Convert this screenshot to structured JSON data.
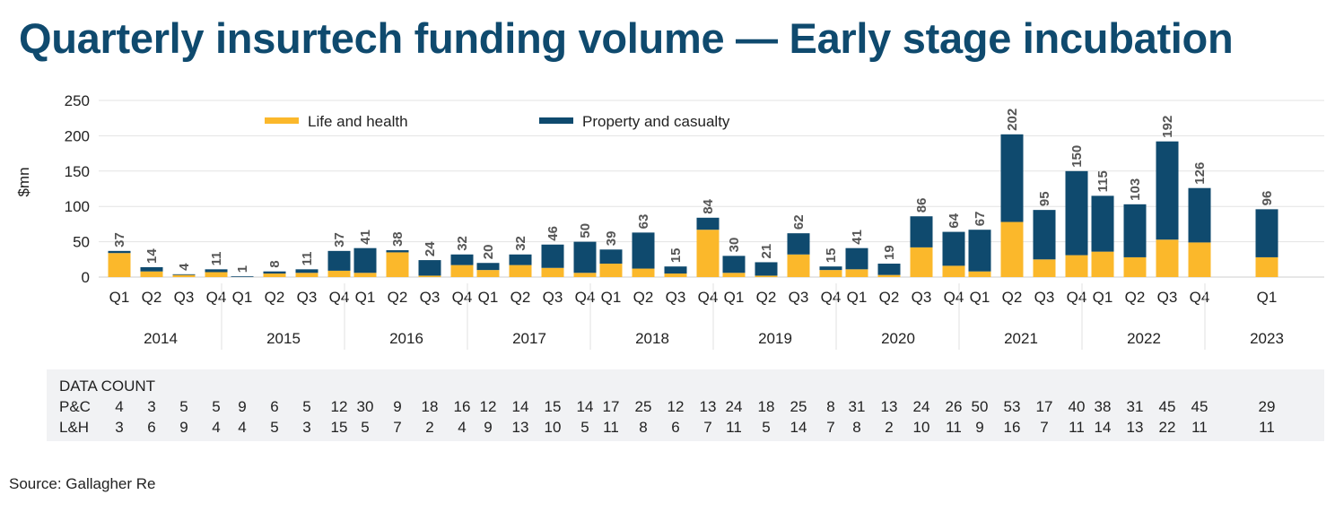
{
  "source": "Source: Gallagher Re",
  "chart_data": {
    "type": "bar",
    "stacked": true,
    "title": "Quarterly insurtech funding volume — Early stage incubation",
    "ylabel": "$mn",
    "ylim": [
      0,
      250
    ],
    "yticks": [
      0,
      50,
      100,
      150,
      200,
      250
    ],
    "grid": true,
    "legend_position": "top-left",
    "colors": {
      "life_health": "#fbb82b",
      "property_casualty": "#0f4a6e",
      "grid": "#e3e3e3",
      "table_bg": "#f1f2f4"
    },
    "series": [
      {
        "name": "Life and health",
        "key": "life_health"
      },
      {
        "name": "Property and casualty",
        "key": "property_casualty"
      }
    ],
    "years": [
      {
        "year": "2014",
        "quarters": [
          {
            "q": "Q1",
            "total": 37,
            "lh": 34,
            "pc_count": "4",
            "lh_count": "3"
          },
          {
            "q": "Q2",
            "total": 14,
            "lh": 8,
            "pc_count": "3",
            "lh_count": "6"
          },
          {
            "q": "Q3",
            "total": 4,
            "lh": 3,
            "pc_count": "5",
            "lh_count": "9"
          },
          {
            "q": "Q4",
            "total": 11,
            "lh": 7,
            "pc_count": "5",
            "lh_count": "4"
          }
        ]
      },
      {
        "year": "2015",
        "quarters": [
          {
            "q": "Q1",
            "total": 1,
            "lh": 0,
            "pc_count": "9",
            "lh_count": "4"
          },
          {
            "q": "Q2",
            "total": 8,
            "lh": 5,
            "pc_count": "6",
            "lh_count": "5"
          },
          {
            "q": "Q3",
            "total": 11,
            "lh": 6,
            "pc_count": "5",
            "lh_count": "3"
          },
          {
            "q": "Q4",
            "total": 37,
            "lh": 9,
            "pc_count": "12",
            "lh_count": "15"
          }
        ]
      },
      {
        "year": "2016",
        "quarters": [
          {
            "q": "Q1",
            "total": 41,
            "lh": 6,
            "pc_count": "30",
            "lh_count": "5"
          },
          {
            "q": "Q2",
            "total": 38,
            "lh": 35,
            "pc_count": "9",
            "lh_count": "7"
          },
          {
            "q": "Q3",
            "total": 24,
            "lh": 2,
            "pc_count": "18",
            "lh_count": "2"
          },
          {
            "q": "Q4",
            "total": 32,
            "lh": 17,
            "pc_count": "16",
            "lh_count": "4"
          }
        ]
      },
      {
        "year": "2017",
        "quarters": [
          {
            "q": "Q1",
            "total": 20,
            "lh": 10,
            "pc_count": "12",
            "lh_count": "9"
          },
          {
            "q": "Q2",
            "total": 32,
            "lh": 17,
            "pc_count": "14",
            "lh_count": "13"
          },
          {
            "q": "Q3",
            "total": 46,
            "lh": 13,
            "pc_count": "15",
            "lh_count": "10"
          },
          {
            "q": "Q4",
            "total": 50,
            "lh": 6,
            "pc_count": "14",
            "lh_count": "5"
          }
        ]
      },
      {
        "year": "2018",
        "quarters": [
          {
            "q": "Q1",
            "total": 39,
            "lh": 19,
            "pc_count": "17",
            "lh_count": "11"
          },
          {
            "q": "Q2",
            "total": 63,
            "lh": 12,
            "pc_count": "25",
            "lh_count": "8"
          },
          {
            "q": "Q3",
            "total": 15,
            "lh": 5,
            "pc_count": "12",
            "lh_count": "6"
          },
          {
            "q": "Q4",
            "total": 84,
            "lh": 67,
            "pc_count": "13",
            "lh_count": "7"
          }
        ]
      },
      {
        "year": "2019",
        "quarters": [
          {
            "q": "Q1",
            "total": 30,
            "lh": 6,
            "pc_count": "24",
            "lh_count": "11"
          },
          {
            "q": "Q2",
            "total": 21,
            "lh": 2,
            "pc_count": "18",
            "lh_count": "5"
          },
          {
            "q": "Q3",
            "total": 62,
            "lh": 32,
            "pc_count": "25",
            "lh_count": "14"
          },
          {
            "q": "Q4",
            "total": 15,
            "lh": 10,
            "pc_count": "8",
            "lh_count": "7"
          }
        ]
      },
      {
        "year": "2020",
        "quarters": [
          {
            "q": "Q1",
            "total": 41,
            "lh": 11,
            "pc_count": "31",
            "lh_count": "8"
          },
          {
            "q": "Q2",
            "total": 19,
            "lh": 3,
            "pc_count": "13",
            "lh_count": "2"
          },
          {
            "q": "Q3",
            "total": 86,
            "lh": 42,
            "pc_count": "24",
            "lh_count": "10"
          },
          {
            "q": "Q4",
            "total": 64,
            "lh": 16,
            "pc_count": "26",
            "lh_count": "11"
          }
        ]
      },
      {
        "year": "2021",
        "quarters": [
          {
            "q": "Q1",
            "total": 67,
            "lh": 8,
            "pc_count": "50",
            "lh_count": "9"
          },
          {
            "q": "Q2",
            "total": 202,
            "lh": 78,
            "pc_count": "53",
            "lh_count": "16"
          },
          {
            "q": "Q3",
            "total": 95,
            "lh": 25,
            "pc_count": "17",
            "lh_count": "7"
          },
          {
            "q": "Q4",
            "total": 150,
            "lh": 31,
            "pc_count": "40",
            "lh_count": "11"
          }
        ]
      },
      {
        "year": "2022",
        "quarters": [
          {
            "q": "Q1",
            "total": 115,
            "lh": 36,
            "pc_count": "38",
            "lh_count": "14"
          },
          {
            "q": "Q2",
            "total": 103,
            "lh": 28,
            "pc_count": "31",
            "lh_count": "13"
          },
          {
            "q": "Q3",
            "total": 192,
            "lh": 53,
            "pc_count": "45",
            "lh_count": "22"
          },
          {
            "q": "Q4",
            "total": 126,
            "lh": 49,
            "pc_count": "45",
            "lh_count": "11"
          }
        ]
      },
      {
        "year": "2023",
        "quarters": [
          {
            "q": "Q1",
            "total": 96,
            "lh": 28,
            "pc_count": "29",
            "lh_count": "11"
          }
        ]
      }
    ],
    "data_count": {
      "header": "DATA COUNT",
      "pc_label": "P&C",
      "lh_label": "L&H"
    }
  }
}
